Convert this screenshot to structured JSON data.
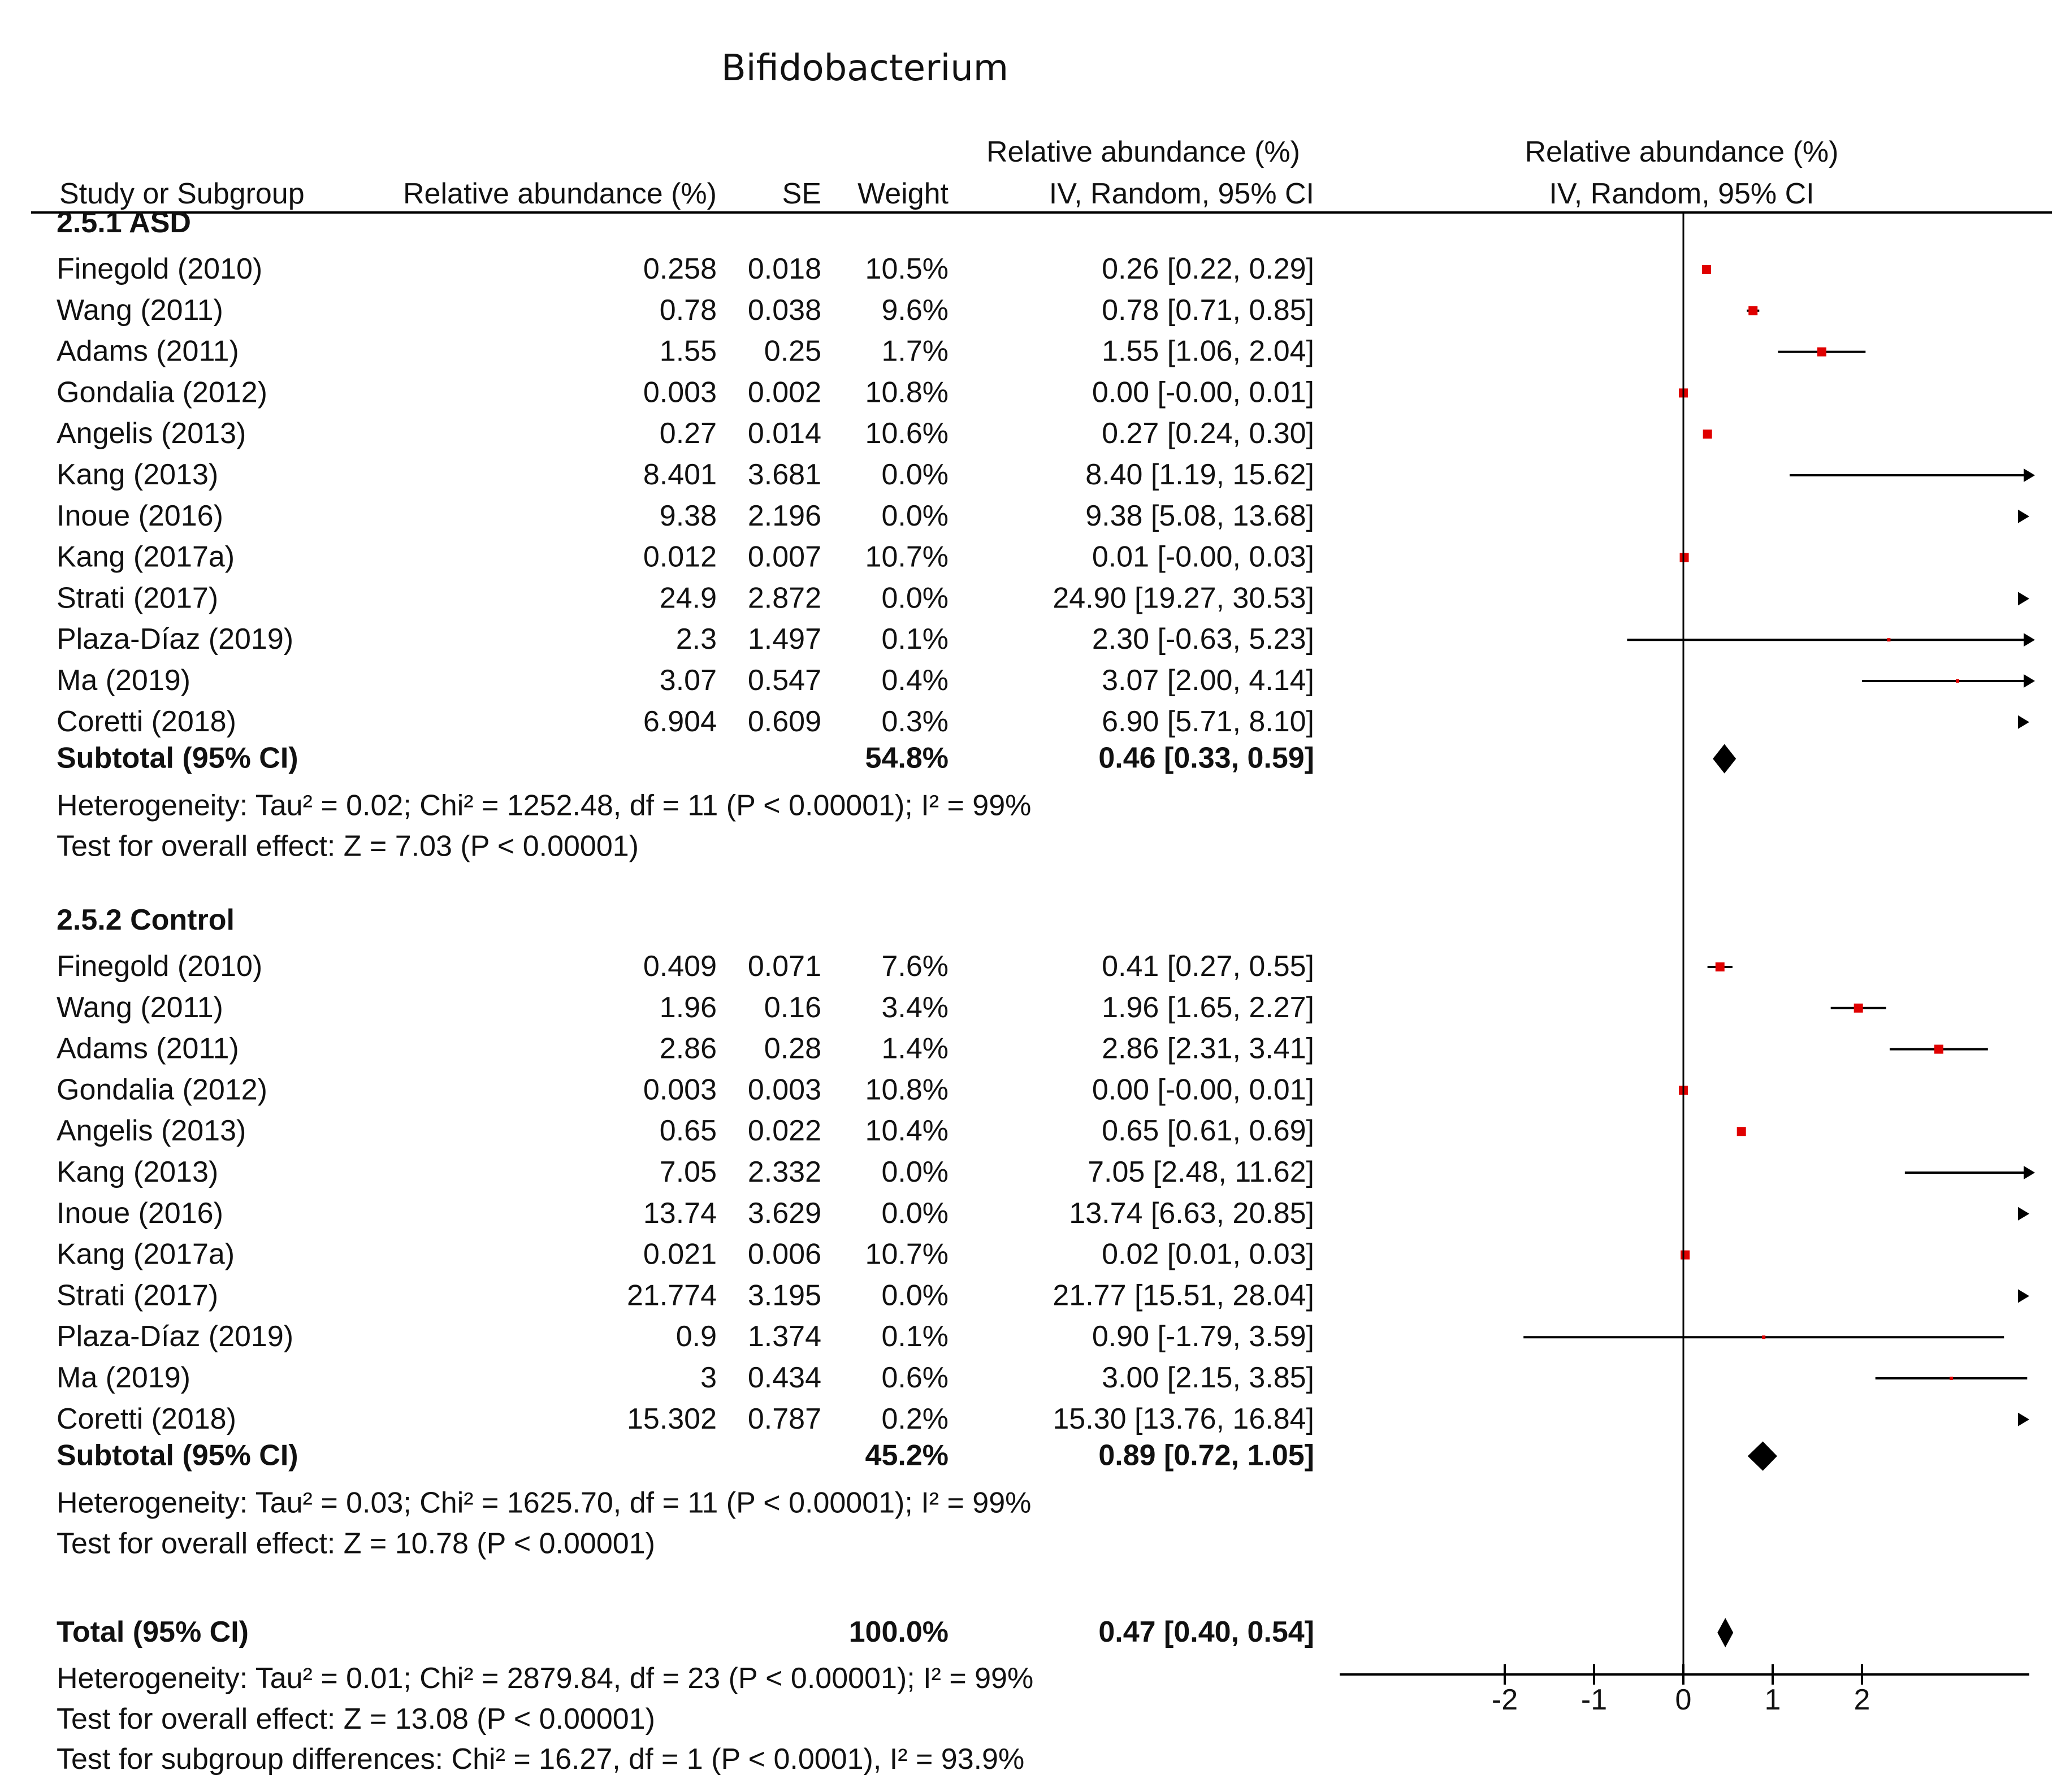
{
  "chart_data": {
    "type": "forest",
    "title": "Bifidobacterium",
    "columns": {
      "study": "Study or Subgroup",
      "mean": "Relative abundance (%)",
      "se": "SE",
      "weight": "Weight",
      "ci_top": "Relative abundance (%)",
      "ci_bottom": "IV, Random, 95% CI"
    },
    "plot_header": {
      "top": "Relative abundance (%)",
      "bottom": "IV, Random, 95% CI"
    },
    "x_axis": {
      "ticks": [
        "-2",
        "-1",
        "0",
        "1",
        "2"
      ],
      "tick_values": [
        -2,
        -1,
        0,
        1,
        2
      ],
      "range": [
        -3.9,
        3.9
      ]
    },
    "groups": [
      {
        "name": "2.5.1 ASD",
        "studies": [
          {
            "study": "Finegold (2010)",
            "mean": "0.258",
            "se": "0.018",
            "weight": "10.5%",
            "ci_text": "0.26 [0.22, 0.29]",
            "est": 0.26,
            "lo": 0.22,
            "hi": 0.29
          },
          {
            "study": "Wang (2011)",
            "mean": "0.78",
            "se": "0.038",
            "weight": "9.6%",
            "ci_text": "0.78 [0.71, 0.85]",
            "est": 0.78,
            "lo": 0.71,
            "hi": 0.85
          },
          {
            "study": "Adams (2011)",
            "mean": "1.55",
            "se": "0.25",
            "weight": "1.7%",
            "ci_text": "1.55 [1.06, 2.04]",
            "est": 1.55,
            "lo": 1.06,
            "hi": 2.04
          },
          {
            "study": "Gondalia (2012)",
            "mean": "0.003",
            "se": "0.002",
            "weight": "10.8%",
            "ci_text": "0.00 [-0.00, 0.01]",
            "est": 0.0,
            "lo": -0.0,
            "hi": 0.01
          },
          {
            "study": "Angelis (2013)",
            "mean": "0.27",
            "se": "0.014",
            "weight": "10.6%",
            "ci_text": "0.27 [0.24, 0.30]",
            "est": 0.27,
            "lo": 0.24,
            "hi": 0.3
          },
          {
            "study": "Kang (2013)",
            "mean": "8.401",
            "se": "3.681",
            "weight": "0.0%",
            "ci_text": "8.40 [1.19, 15.62]",
            "est": 8.4,
            "lo": 1.19,
            "hi": 15.62
          },
          {
            "study": "Inoue (2016)",
            "mean": "9.38",
            "se": "2.196",
            "weight": "0.0%",
            "ci_text": "9.38 [5.08, 13.68]",
            "est": 9.38,
            "lo": 5.08,
            "hi": 13.68
          },
          {
            "study": "Kang (2017a)",
            "mean": "0.012",
            "se": "0.007",
            "weight": "10.7%",
            "ci_text": "0.01 [-0.00, 0.03]",
            "est": 0.01,
            "lo": -0.0,
            "hi": 0.03
          },
          {
            "study": "Strati (2017)",
            "mean": "24.9",
            "se": "2.872",
            "weight": "0.0%",
            "ci_text": "24.90 [19.27, 30.53]",
            "est": 24.9,
            "lo": 19.27,
            "hi": 30.53
          },
          {
            "study": "Plaza-Díaz (2019)",
            "mean": "2.3",
            "se": "1.497",
            "weight": "0.1%",
            "ci_text": "2.30 [-0.63, 5.23]",
            "est": 2.3,
            "lo": -0.63,
            "hi": 5.23
          },
          {
            "study": "Ma (2019)",
            "mean": "3.07",
            "se": "0.547",
            "weight": "0.4%",
            "ci_text": "3.07 [2.00, 4.14]",
            "est": 3.07,
            "lo": 2.0,
            "hi": 4.14
          },
          {
            "study": "Coretti (2018)",
            "mean": "6.904",
            "se": "0.609",
            "weight": "0.3%",
            "ci_text": "6.90 [5.71, 8.10]",
            "est": 6.9,
            "lo": 5.71,
            "hi": 8.1
          }
        ],
        "subtotal": {
          "label": "Subtotal (95% CI)",
          "weight": "54.8%",
          "ci_text": "0.46 [0.33, 0.59]",
          "est": 0.46,
          "lo": 0.33,
          "hi": 0.59
        },
        "heterogeneity": "Heterogeneity: Tau² = 0.02; Chi² = 1252.48, df = 11 (P < 0.00001); I² = 99%",
        "overall": "Test for overall effect: Z = 7.03 (P < 0.00001)"
      },
      {
        "name": "2.5.2 Control",
        "studies": [
          {
            "study": "Finegold (2010)",
            "mean": "0.409",
            "se": "0.071",
            "weight": "7.6%",
            "ci_text": "0.41 [0.27, 0.55]",
            "est": 0.41,
            "lo": 0.27,
            "hi": 0.55
          },
          {
            "study": "Wang (2011)",
            "mean": "1.96",
            "se": "0.16",
            "weight": "3.4%",
            "ci_text": "1.96 [1.65, 2.27]",
            "est": 1.96,
            "lo": 1.65,
            "hi": 2.27
          },
          {
            "study": "Adams (2011)",
            "mean": "2.86",
            "se": "0.28",
            "weight": "1.4%",
            "ci_text": "2.86 [2.31, 3.41]",
            "est": 2.86,
            "lo": 2.31,
            "hi": 3.41
          },
          {
            "study": "Gondalia (2012)",
            "mean": "0.003",
            "se": "0.003",
            "weight": "10.8%",
            "ci_text": "0.00 [-0.00, 0.01]",
            "est": 0.0,
            "lo": -0.0,
            "hi": 0.01
          },
          {
            "study": "Angelis (2013)",
            "mean": "0.65",
            "se": "0.022",
            "weight": "10.4%",
            "ci_text": "0.65 [0.61, 0.69]",
            "est": 0.65,
            "lo": 0.61,
            "hi": 0.69
          },
          {
            "study": "Kang (2013)",
            "mean": "7.05",
            "se": "2.332",
            "weight": "0.0%",
            "ci_text": "7.05 [2.48, 11.62]",
            "est": 7.05,
            "lo": 2.48,
            "hi": 11.62
          },
          {
            "study": "Inoue (2016)",
            "mean": "13.74",
            "se": "3.629",
            "weight": "0.0%",
            "ci_text": "13.74 [6.63, 20.85]",
            "est": 13.74,
            "lo": 6.63,
            "hi": 20.85
          },
          {
            "study": "Kang (2017a)",
            "mean": "0.021",
            "se": "0.006",
            "weight": "10.7%",
            "ci_text": "0.02 [0.01, 0.03]",
            "est": 0.02,
            "lo": 0.01,
            "hi": 0.03
          },
          {
            "study": "Strati (2017)",
            "mean": "21.774",
            "se": "3.195",
            "weight": "0.0%",
            "ci_text": "21.77 [15.51, 28.04]",
            "est": 21.77,
            "lo": 15.51,
            "hi": 28.04
          },
          {
            "study": "Plaza-Díaz (2019)",
            "mean": "0.9",
            "se": "1.374",
            "weight": "0.1%",
            "ci_text": "0.90 [-1.79, 3.59]",
            "est": 0.9,
            "lo": -1.79,
            "hi": 3.59
          },
          {
            "study": "Ma (2019)",
            "mean": "3",
            "se": "0.434",
            "weight": "0.6%",
            "ci_text": "3.00 [2.15, 3.85]",
            "est": 3.0,
            "lo": 2.15,
            "hi": 3.85
          },
          {
            "study": "Coretti (2018)",
            "mean": "15.302",
            "se": "0.787",
            "weight": "0.2%",
            "ci_text": "15.30 [13.76, 16.84]",
            "est": 15.3,
            "lo": 13.76,
            "hi": 16.84
          }
        ],
        "subtotal": {
          "label": "Subtotal (95% CI)",
          "weight": "45.2%",
          "ci_text": "0.89 [0.72, 1.05]",
          "est": 0.89,
          "lo": 0.72,
          "hi": 1.05
        },
        "heterogeneity": "Heterogeneity: Tau² = 0.03; Chi² = 1625.70, df = 11 (P < 0.00001); I² = 99%",
        "overall": "Test for overall effect: Z = 10.78 (P < 0.00001)"
      }
    ],
    "total": {
      "label": "Total (95% CI)",
      "weight": "100.0%",
      "ci_text": "0.47 [0.40, 0.54]",
      "est": 0.47,
      "lo": 0.4,
      "hi": 0.54,
      "heterogeneity": "Heterogeneity: Tau² = 0.01; Chi² = 2879.84, df = 23 (P < 0.00001); I² = 99%",
      "overall": "Test for overall effect: Z = 13.08 (P < 0.00001)",
      "subgroup": "Test for subgroup differences: Chi² = 16.27, df = 1 (P < 0.0001), I² = 93.9%"
    },
    "colors": {
      "marker": "#e00000",
      "line": "#000000",
      "text": "#111111"
    }
  }
}
